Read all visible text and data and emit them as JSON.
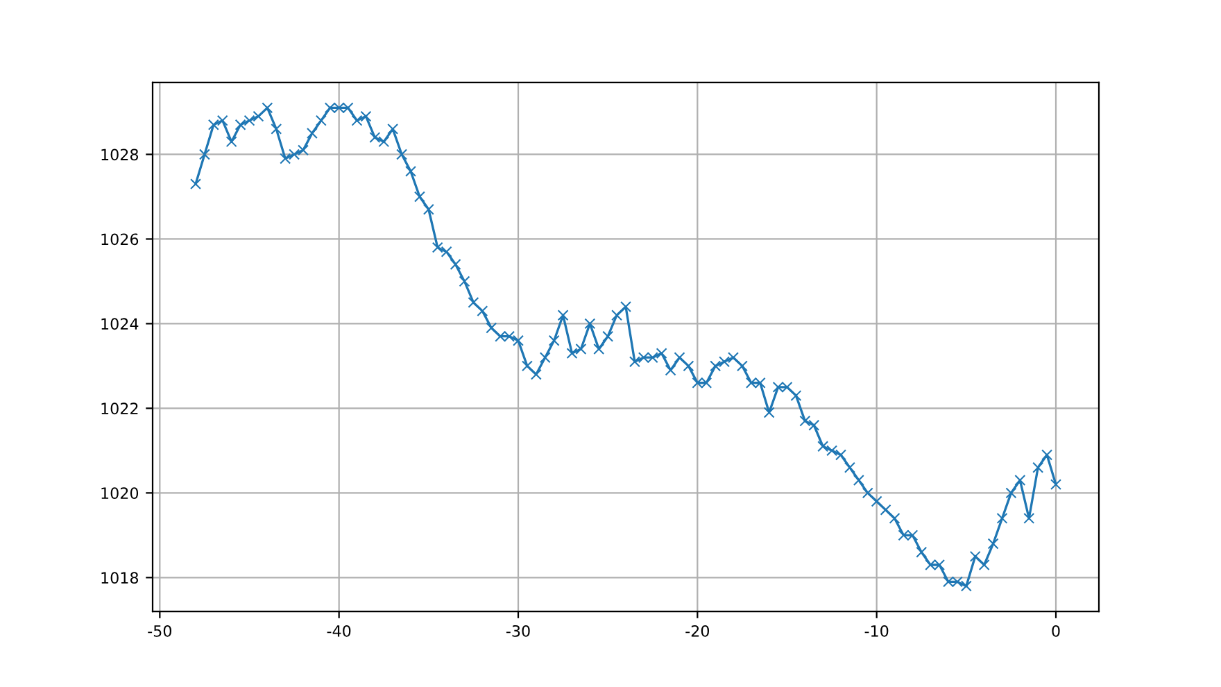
{
  "chart_data": {
    "type": "line",
    "marker": "cross",
    "grid": true,
    "color": "#1f77b4",
    "x": [
      -48,
      -47.5,
      -47,
      -46.5,
      -46,
      -45.5,
      -45,
      -44.5,
      -44,
      -43.5,
      -43,
      -42.5,
      -42,
      -41.5,
      -41,
      -40.5,
      -40,
      -39.5,
      -39,
      -38.5,
      -38,
      -37.5,
      -37,
      -36.5,
      -36,
      -35.5,
      -35,
      -34.5,
      -34,
      -33.5,
      -33,
      -32.5,
      -32,
      -31.5,
      -31,
      -30.5,
      -30,
      -29.5,
      -29,
      -28.5,
      -28,
      -27.5,
      -27,
      -26.5,
      -26,
      -25.5,
      -25,
      -24.5,
      -24,
      -23.5,
      -23,
      -22.5,
      -22,
      -21.5,
      -21,
      -20.5,
      -20,
      -19.5,
      -19,
      -18.5,
      -18,
      -17.5,
      -17,
      -16.5,
      -16,
      -15.5,
      -15,
      -14.5,
      -14,
      -13.5,
      -13,
      -12.5,
      -12,
      -11.5,
      -11,
      -10.5,
      -10,
      -9.5,
      -9,
      -8.5,
      -8,
      -7.5,
      -7,
      -6.5,
      -6,
      -5.5,
      -5,
      -4.5,
      -4,
      -3.5,
      -3,
      -2.5,
      -2,
      -1.5,
      -1,
      -0.5,
      0
    ],
    "values": [
      1027.3,
      1028.0,
      1028.7,
      1028.8,
      1028.3,
      1028.7,
      1028.8,
      1028.9,
      1029.1,
      1028.6,
      1027.9,
      1028.0,
      1028.1,
      1028.5,
      1028.8,
      1029.1,
      1029.1,
      1029.1,
      1028.8,
      1028.9,
      1028.4,
      1028.3,
      1028.6,
      1028.0,
      1027.6,
      1027.0,
      1026.7,
      1025.8,
      1025.7,
      1025.4,
      1025.0,
      1024.5,
      1024.3,
      1023.9,
      1023.7,
      1023.7,
      1023.6,
      1023.0,
      1022.8,
      1023.2,
      1023.6,
      1024.2,
      1023.3,
      1023.4,
      1024.0,
      1023.4,
      1023.7,
      1024.2,
      1024.4,
      1023.1,
      1023.2,
      1023.2,
      1023.3,
      1022.9,
      1023.2,
      1023.0,
      1022.6,
      1022.6,
      1023.0,
      1023.1,
      1023.2,
      1023.0,
      1022.6,
      1022.6,
      1021.9,
      1022.5,
      1022.5,
      1022.3,
      1021.7,
      1021.6,
      1021.1,
      1021.0,
      1020.9,
      1020.6,
      1020.3,
      1020.0,
      1019.8,
      1019.6,
      1019.4,
      1019.0,
      1019.0,
      1018.6,
      1018.3,
      1018.3,
      1017.9,
      1017.9,
      1017.8,
      1018.5,
      1018.3,
      1018.8,
      1019.4,
      1020.0,
      1020.3,
      1019.4,
      1020.6,
      1020.9,
      1020.2
    ],
    "xlim": [
      -50.4,
      2.4
    ],
    "ylim": [
      1017.2,
      1029.7
    ],
    "xticks": [
      -50,
      -40,
      -30,
      -20,
      -10,
      0
    ],
    "yticks": [
      1018,
      1020,
      1022,
      1024,
      1026,
      1028
    ]
  }
}
